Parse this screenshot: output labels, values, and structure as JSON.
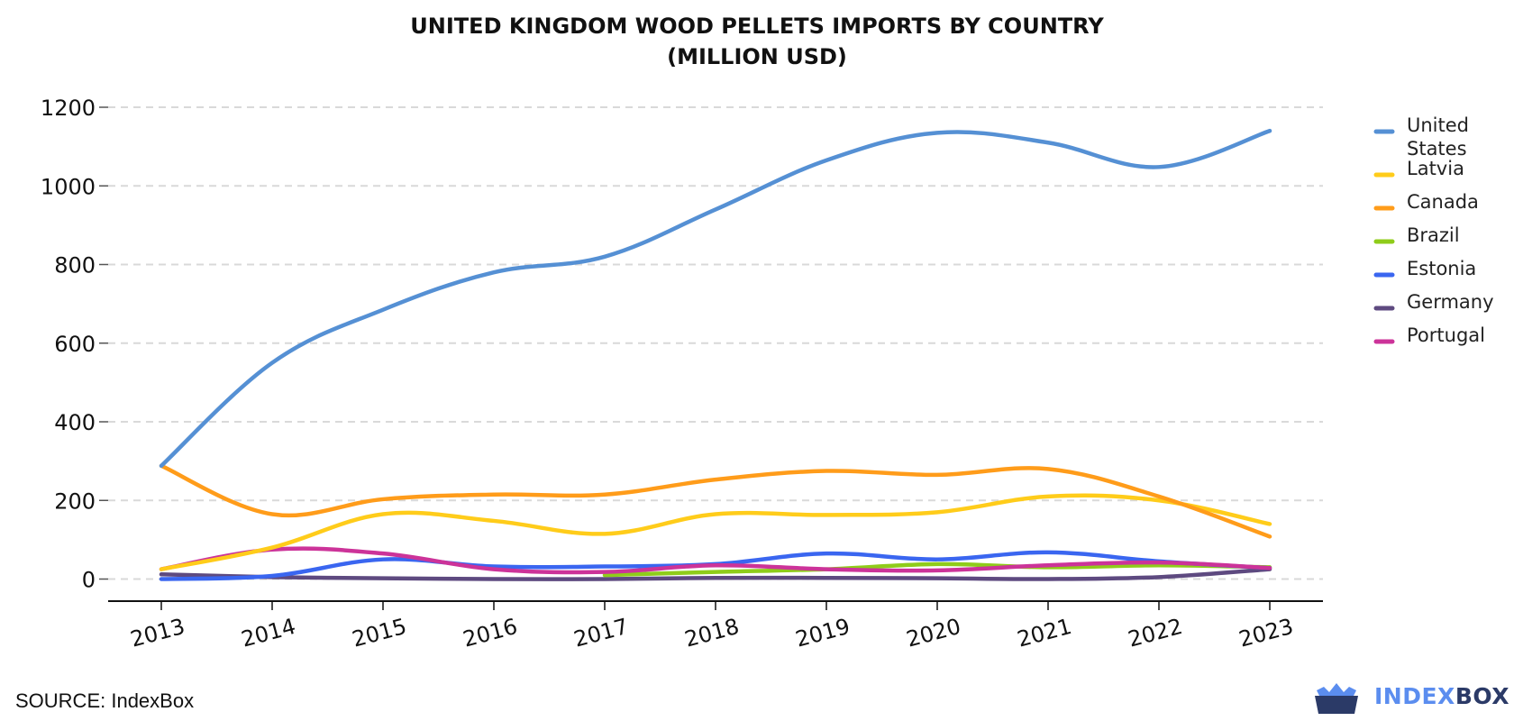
{
  "chart_data": {
    "type": "line",
    "title_lines": [
      "UNITED KINGDOM WOOD PELLETS IMPORTS BY COUNTRY",
      "(MILLION USD)"
    ],
    "xlabel": "",
    "ylabel": "",
    "categories": [
      "2013",
      "2014",
      "2015",
      "2016",
      "2017",
      "2018",
      "2019",
      "2020",
      "2021",
      "2022",
      "2023"
    ],
    "yticks": [
      0,
      200,
      400,
      600,
      800,
      1000,
      1200
    ],
    "ylim": [
      -55,
      1215
    ],
    "grid": "horizontal dashed",
    "legend_position": "right",
    "series": [
      {
        "name": "United States",
        "label_lines": [
          "United",
          "States"
        ],
        "color": "#5590d4",
        "values": [
          288,
          550,
          685,
          780,
          820,
          940,
          1065,
          1135,
          1110,
          1048,
          1140
        ]
      },
      {
        "name": "Latvia",
        "label_lines": [
          "Latvia"
        ],
        "color": "#ffcc1a",
        "values": [
          25,
          80,
          165,
          148,
          115,
          165,
          163,
          170,
          210,
          200,
          140
        ]
      },
      {
        "name": "Canada",
        "label_lines": [
          "Canada"
        ],
        "color": "#ff9c1a",
        "values": [
          288,
          165,
          203,
          215,
          215,
          253,
          275,
          265,
          280,
          210,
          108
        ]
      },
      {
        "name": "Brazil",
        "label_lines": [
          "Brazil"
        ],
        "color": "#8fcc1a",
        "values": [
          null,
          null,
          null,
          null,
          10,
          18,
          25,
          38,
          30,
          35,
          30
        ]
      },
      {
        "name": "Estonia",
        "label_lines": [
          "Estonia"
        ],
        "color": "#3a66f0",
        "values": [
          0,
          8,
          50,
          32,
          32,
          38,
          65,
          50,
          68,
          45,
          28
        ]
      },
      {
        "name": "Germany",
        "label_lines": [
          "Germany"
        ],
        "color": "#5e4a80",
        "values": [
          12,
          5,
          2,
          0,
          0,
          3,
          3,
          2,
          0,
          5,
          25
        ]
      },
      {
        "name": "Portugal",
        "label_lines": [
          "Portugal"
        ],
        "color": "#cc3399",
        "values": [
          25,
          75,
          65,
          25,
          18,
          35,
          25,
          22,
          35,
          42,
          28
        ]
      }
    ]
  },
  "footer": {
    "source": "SOURCE: IndexBox",
    "logo_part1": "INDEX",
    "logo_part2": "BOX"
  }
}
